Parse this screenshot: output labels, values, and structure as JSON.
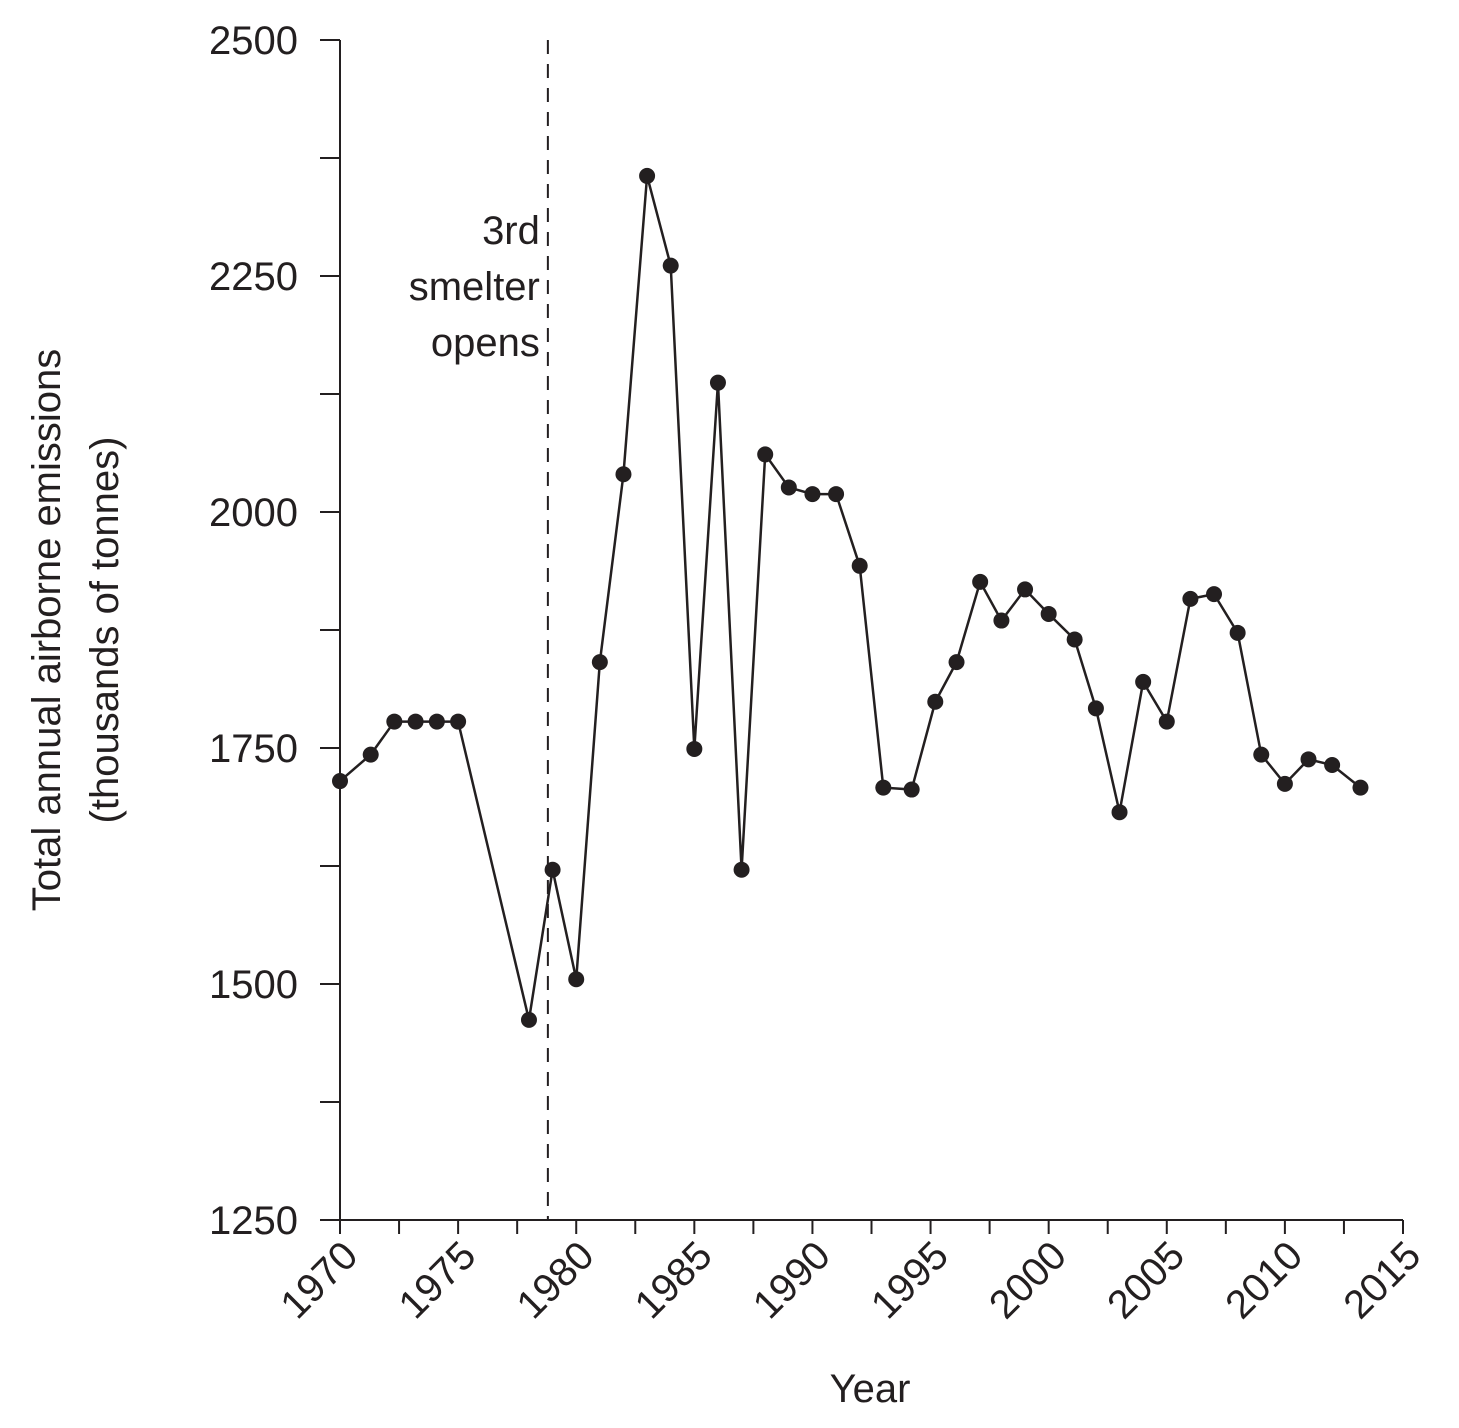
{
  "chart_data": {
    "type": "line",
    "x_label": "Year",
    "y_label": [
      "Total annual airborne emissions",
      "(thousands of tonnes)"
    ],
    "x": [
      1970,
      1971.3,
      1972.3,
      1973.2,
      1974.1,
      1975,
      1978,
      1979,
      1980,
      1981,
      1982,
      1983,
      1984,
      1985,
      1986,
      1987,
      1988,
      1989,
      1990,
      1991,
      1992,
      1993,
      1994.2,
      1995.2,
      1996.1,
      1997.1,
      1998,
      1999,
      2000,
      2001.1,
      2002,
      2003,
      2004,
      2005,
      2006,
      2007,
      2008,
      2009,
      2010,
      2011,
      2012,
      2013.2
    ],
    "series": [
      {
        "color": "#231f20",
        "values": [
          1715,
          1743,
          1778,
          1778,
          1778,
          1778,
          1462,
          1621,
          1505,
          1841,
          2040,
          2356,
          2261,
          1749,
          2137,
          1621,
          2061,
          2026,
          2019,
          2019,
          1943,
          1708,
          1706,
          1799,
          1841,
          1926,
          1885,
          1918,
          1892,
          1865,
          1792,
          1682,
          1820,
          1778,
          1908,
          1913,
          1872,
          1743,
          1712,
          1738,
          1732,
          1708
        ]
      }
    ],
    "xlim": [
      1970,
      2015
    ],
    "xticks": [
      1970,
      1975,
      1980,
      1985,
      1990,
      1995,
      2000,
      2005,
      2010,
      2015
    ],
    "xminor_ticks": [
      1972.5,
      1977.5,
      1982.5,
      1987.5,
      1992.5,
      1997.5,
      2002.5,
      2007.5,
      2012.5
    ],
    "ylim": [
      1250,
      2500
    ],
    "yticks": [
      1250,
      1500,
      1750,
      2000,
      2250,
      2500
    ],
    "yminor_ticks": [
      1375,
      1625,
      1875,
      2125,
      2375
    ],
    "event_line": {
      "x": 1978.8,
      "label": [
        "3rd",
        "smelter",
        "opens"
      ]
    }
  }
}
